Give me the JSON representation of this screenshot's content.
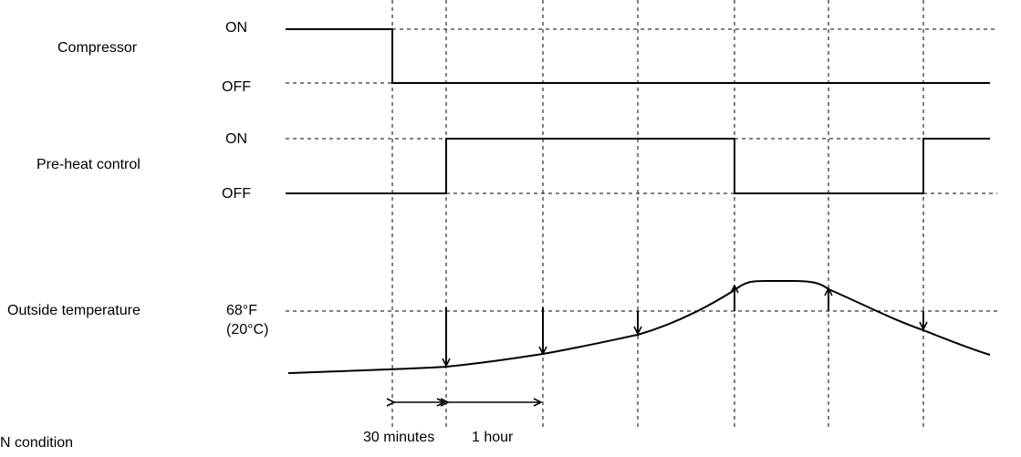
{
  "rows": {
    "compressor": {
      "label": "Compressor",
      "on": "ON",
      "off": "OFF"
    },
    "preheat": {
      "label": "Pre-heat control",
      "on": "ON",
      "off": "OFF"
    },
    "temperature": {
      "label": "Outside temperature",
      "threshold_f": "68°F",
      "threshold_c": "(20°C)"
    }
  },
  "timing": {
    "first": "30 minutes",
    "second": "1 hour"
  },
  "footer": {
    "text": "N condition"
  }
}
